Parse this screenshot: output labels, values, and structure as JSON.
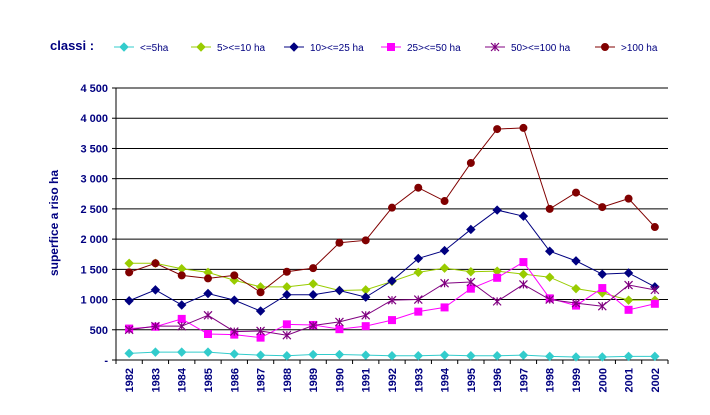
{
  "chart_data": {
    "type": "line",
    "legend_title": "classi :",
    "ylabel": "superfice a riso ha",
    "xlabel": "",
    "ylim": [
      0,
      4500
    ],
    "y_ticks": [
      "-",
      "500",
      "1 000",
      "1 500",
      "2 000",
      "2 500",
      "3 000",
      "3 500",
      "4 000",
      "4 500"
    ],
    "grid": "horizontal",
    "legend_position": "top",
    "categories": [
      "1982",
      "1983",
      "1984",
      "1985",
      "1986",
      "1987",
      "1988",
      "1989",
      "1990",
      "1991",
      "1992",
      "1993",
      "1994",
      "1995",
      "1996",
      "1997",
      "1998",
      "1999",
      "2000",
      "2001",
      "2002"
    ],
    "series": [
      {
        "name": "<=5ha",
        "color": "#33CCCC",
        "marker": "diamond",
        "values": [
          110,
          130,
          130,
          130,
          100,
          80,
          70,
          90,
          90,
          80,
          70,
          70,
          80,
          70,
          70,
          80,
          60,
          50,
          50,
          60,
          60
        ]
      },
      {
        "name": "5><=10 ha",
        "color": "#99CC00",
        "marker": "diamond",
        "values": [
          1600,
          1600,
          1510,
          1450,
          1320,
          1210,
          1210,
          1260,
          1150,
          1160,
          1300,
          1450,
          1520,
          1460,
          1470,
          1420,
          1370,
          1180,
          1110,
          990,
          990
        ]
      },
      {
        "name": "10><=25 ha",
        "color": "#000080",
        "marker": "diamond",
        "values": [
          980,
          1160,
          910,
          1100,
          990,
          810,
          1080,
          1080,
          1150,
          1040,
          1310,
          1680,
          1810,
          2160,
          2480,
          2380,
          1800,
          1640,
          1420,
          1440,
          1210
        ]
      },
      {
        "name": "25><=50 ha",
        "color": "#FF00FF",
        "marker": "square",
        "values": [
          520,
          550,
          680,
          430,
          420,
          370,
          590,
          580,
          510,
          560,
          660,
          800,
          870,
          1180,
          1360,
          1620,
          1020,
          900,
          1190,
          830,
          930
        ]
      },
      {
        "name": "50><=100 ha",
        "color": "#800080",
        "marker": "star",
        "values": [
          500,
          560,
          560,
          740,
          470,
          480,
          410,
          570,
          630,
          740,
          990,
          1000,
          1270,
          1290,
          970,
          1250,
          1000,
          940,
          890,
          1240,
          1160
        ]
      },
      {
        "name": ">100 ha",
        "color": "#800000",
        "marker": "circle",
        "values": [
          1450,
          1600,
          1400,
          1350,
          1400,
          1120,
          1460,
          1520,
          1940,
          1980,
          2520,
          2850,
          2630,
          3260,
          3820,
          3840,
          2500,
          2770,
          2530,
          2670,
          2200
        ]
      }
    ]
  }
}
